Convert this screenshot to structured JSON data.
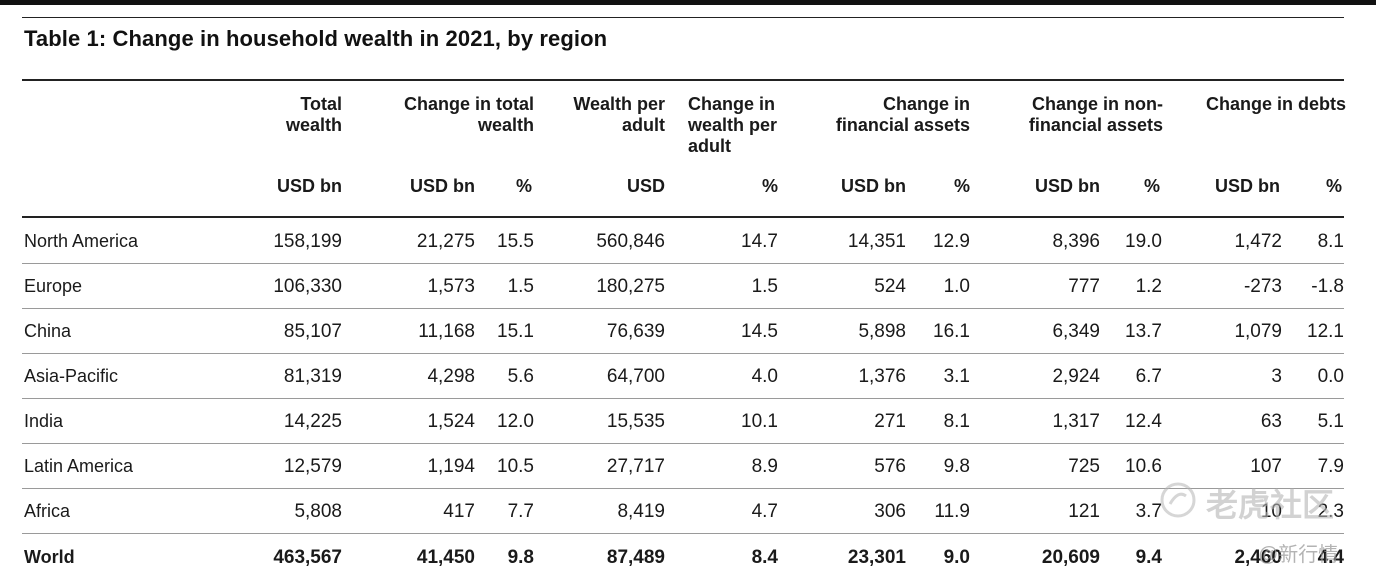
{
  "title": "Table 1: Change in household wealth in 2021, by region",
  "headers": {
    "total_wealth": "Total wealth",
    "change_total_wealth": "Change in total wealth",
    "wealth_per_adult": "Wealth per adult",
    "change_wealth_per_adult": "Change in wealth per adult",
    "change_financial": "Change in financial assets",
    "change_nonfinancial": "Change in non-financial assets",
    "change_debts": "Change in debts"
  },
  "units": {
    "usd_bn": "USD bn",
    "pct": "%",
    "usd": "USD"
  },
  "rows": [
    {
      "region": "North America",
      "total": "158,199",
      "chg_total": "21,275",
      "chg_total_pct": "15.5",
      "per_adult": "560,846",
      "chg_per_adult_pct": "14.7",
      "fin": "14,351",
      "fin_pct": "12.9",
      "nonfin": "8,396",
      "nonfin_pct": "19.0",
      "debt": "1,472",
      "debt_pct": "8.1"
    },
    {
      "region": "Europe",
      "total": "106,330",
      "chg_total": "1,573",
      "chg_total_pct": "1.5",
      "per_adult": "180,275",
      "chg_per_adult_pct": "1.5",
      "fin": "524",
      "fin_pct": "1.0",
      "nonfin": "777",
      "nonfin_pct": "1.2",
      "debt": "-273",
      "debt_pct": "-1.8"
    },
    {
      "region": "China",
      "total": "85,107",
      "chg_total": "11,168",
      "chg_total_pct": "15.1",
      "per_adult": "76,639",
      "chg_per_adult_pct": "14.5",
      "fin": "5,898",
      "fin_pct": "16.1",
      "nonfin": "6,349",
      "nonfin_pct": "13.7",
      "debt": "1,079",
      "debt_pct": "12.1"
    },
    {
      "region": "Asia-Pacific",
      "total": "81,319",
      "chg_total": "4,298",
      "chg_total_pct": "5.6",
      "per_adult": "64,700",
      "chg_per_adult_pct": "4.0",
      "fin": "1,376",
      "fin_pct": "3.1",
      "nonfin": "2,924",
      "nonfin_pct": "6.7",
      "debt": "3",
      "debt_pct": "0.0"
    },
    {
      "region": "India",
      "total": "14,225",
      "chg_total": "1,524",
      "chg_total_pct": "12.0",
      "per_adult": "15,535",
      "chg_per_adult_pct": "10.1",
      "fin": "271",
      "fin_pct": "8.1",
      "nonfin": "1,317",
      "nonfin_pct": "12.4",
      "debt": "63",
      "debt_pct": "5.1"
    },
    {
      "region": "Latin America",
      "total": "12,579",
      "chg_total": "1,194",
      "chg_total_pct": "10.5",
      "per_adult": "27,717",
      "chg_per_adult_pct": "8.9",
      "fin": "576",
      "fin_pct": "9.8",
      "nonfin": "725",
      "nonfin_pct": "10.6",
      "debt": "107",
      "debt_pct": "7.9"
    },
    {
      "region": "Africa",
      "total": "5,808",
      "chg_total": "417",
      "chg_total_pct": "7.7",
      "per_adult": "8,419",
      "chg_per_adult_pct": "4.7",
      "fin": "306",
      "fin_pct": "11.9",
      "nonfin": "121",
      "nonfin_pct": "3.7",
      "debt": "10",
      "debt_pct": "2.3"
    },
    {
      "region": "World",
      "total": "463,567",
      "chg_total": "41,450",
      "chg_total_pct": "9.8",
      "per_adult": "87,489",
      "chg_per_adult_pct": "8.4",
      "fin": "23,301",
      "fin_pct": "9.0",
      "nonfin": "20,609",
      "nonfin_pct": "9.4",
      "debt": "2,460",
      "debt_pct": "4.4"
    }
  ],
  "watermark": {
    "brand": "老虎社区",
    "handle": "@新行情"
  }
}
